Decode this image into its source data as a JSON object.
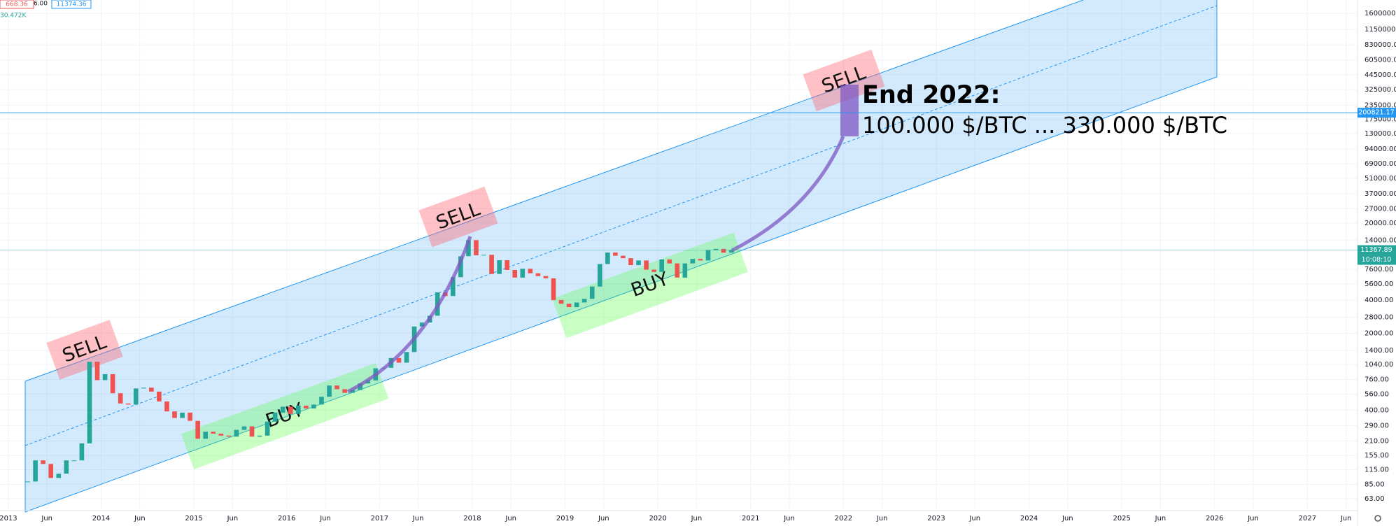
{
  "chart_data": {
    "type": "candlestick",
    "legend_values": [
      "668.36",
      "6.00",
      "11374.36"
    ],
    "volume_label": "30.472K",
    "x": [
      "2013-03",
      "2013-04",
      "2013-05",
      "2013-06",
      "2013-07",
      "2013-08",
      "2013-09",
      "2013-10",
      "2013-11",
      "2013-12",
      "2014-01",
      "2014-02",
      "2014-03",
      "2014-04",
      "2014-05",
      "2014-06",
      "2014-07",
      "2014-08",
      "2014-09",
      "2014-10",
      "2014-11",
      "2014-12",
      "2015-01",
      "2015-02",
      "2015-03",
      "2015-04",
      "2015-05",
      "2015-06",
      "2015-07",
      "2015-08",
      "2015-09",
      "2015-10",
      "2015-11",
      "2015-12",
      "2016-01",
      "2016-02",
      "2016-03",
      "2016-04",
      "2016-05",
      "2016-06",
      "2016-07",
      "2016-08",
      "2016-09",
      "2016-10",
      "2016-11",
      "2016-12",
      "2017-01",
      "2017-02",
      "2017-03",
      "2017-04",
      "2017-05",
      "2017-06",
      "2017-07",
      "2017-08",
      "2017-09",
      "2017-10",
      "2017-11",
      "2017-12",
      "2018-01",
      "2018-02",
      "2018-03",
      "2018-04",
      "2018-05",
      "2018-06",
      "2018-07",
      "2018-08",
      "2018-09",
      "2018-10",
      "2018-11",
      "2018-12",
      "2019-01",
      "2019-02",
      "2019-03",
      "2019-04",
      "2019-05",
      "2019-06",
      "2019-07",
      "2019-08",
      "2019-09",
      "2019-10",
      "2019-11",
      "2019-12",
      "2020-01",
      "2020-02",
      "2020-03",
      "2020-04",
      "2020-05",
      "2020-06",
      "2020-07",
      "2020-08",
      "2020-09",
      "2020-10"
    ],
    "values": [
      90,
      140,
      130,
      97,
      106,
      140,
      140,
      200,
      1100,
      750,
      850,
      570,
      460,
      450,
      630,
      640,
      590,
      480,
      390,
      340,
      380,
      320,
      220,
      255,
      245,
      235,
      230,
      265,
      285,
      230,
      235,
      315,
      380,
      430,
      370,
      440,
      415,
      450,
      530,
      670,
      620,
      575,
      610,
      700,
      745,
      960,
      970,
      1190,
      1080,
      1350,
      2300,
      2500,
      2880,
      4700,
      4350,
      6450,
      10000,
      14000,
      10200,
      10300,
      6900,
      9200,
      7500,
      6400,
      7700,
      7000,
      6600,
      6300,
      4000,
      3700,
      3450,
      3800,
      4100,
      5300,
      8500,
      10800,
      10100,
      9600,
      8300,
      9150,
      7550,
      7200,
      9350,
      8600,
      6400,
      8600,
      9450,
      9140,
      11350,
      11650,
      10780,
      11370
    ],
    "up_color": "#26a69a",
    "down_color": "#ef5350",
    "log_y": true,
    "grid": true,
    "xlim": [
      2012.91,
      2027.54
    ],
    "ylim": [
      49,
      2120000
    ],
    "xticks": [
      2013,
      {
        "value": 2013.4167,
        "label": "Jun"
      },
      2014,
      {
        "value": 2014.4167,
        "label": "Jun"
      },
      2015,
      {
        "value": 2015.4167,
        "label": "Jun"
      },
      2016,
      {
        "value": 2016.4167,
        "label": "Jun"
      },
      2017,
      {
        "value": 2017.4167,
        "label": "Jun"
      },
      2018,
      {
        "value": 2018.4167,
        "label": "Jun"
      },
      2019,
      {
        "value": 2019.4167,
        "label": "Jun"
      },
      2020,
      {
        "value": 2020.4167,
        "label": "Jun"
      },
      2021,
      {
        "value": 2021.4167,
        "label": "Jun"
      },
      2022,
      {
        "value": 2022.4167,
        "label": "Jun"
      },
      2023,
      {
        "value": 2023.4167,
        "label": "Jun"
      },
      2024,
      {
        "value": 2024.4167,
        "label": "Jun"
      },
      2025,
      {
        "value": 2025.4167,
        "label": "Jun"
      },
      2026,
      {
        "value": 2026.4167,
        "label": "Jun"
      },
      2027,
      {
        "value": 2027.4167,
        "label": "Jun"
      }
    ],
    "yticks": [
      {
        "value": 1600000,
        "label": "1600000.00"
      },
      {
        "value": 1150000,
        "label": "1150000.00"
      },
      {
        "value": 830000,
        "label": "830000.00"
      },
      {
        "value": 605000,
        "label": "605000.00"
      },
      {
        "value": 445000,
        "label": "445000.00"
      },
      {
        "value": 325000,
        "label": "325000.00"
      },
      {
        "value": 235000,
        "label": "235000.00"
      },
      {
        "value": 175000,
        "label": "175000.00"
      },
      {
        "value": 130000,
        "label": "130000.00"
      },
      {
        "value": 94000,
        "label": "94000.00"
      },
      {
        "value": 69000,
        "label": "69000.00"
      },
      {
        "value": 51000,
        "label": "51000.00"
      },
      {
        "value": 37000,
        "label": "37000.00"
      },
      {
        "value": 27000,
        "label": "27000.00"
      },
      {
        "value": 20000,
        "label": "20000.00"
      },
      {
        "value": 14000,
        "label": "14000.00"
      },
      {
        "value": 7600,
        "label": "7600.00"
      },
      {
        "value": 5600,
        "label": "5600.00"
      },
      {
        "value": 4000,
        "label": "4000.00"
      },
      {
        "value": 2800,
        "label": "2800.00"
      },
      {
        "value": 2000,
        "label": "2000.00"
      },
      {
        "value": 1400,
        "label": "1400.00"
      },
      {
        "value": 1040,
        "label": "1040.00"
      },
      {
        "value": 760,
        "label": "760.00"
      },
      {
        "value": 560,
        "label": "560.00"
      },
      {
        "value": 400,
        "label": "400.00"
      },
      {
        "value": 290,
        "label": "290.00"
      },
      {
        "value": 210,
        "label": "210.00"
      },
      {
        "value": 155,
        "label": "155.00"
      },
      {
        "value": 115,
        "label": "115.00"
      },
      {
        "value": 85,
        "label": "85.00"
      },
      {
        "value": 63,
        "label": "63.00"
      }
    ],
    "price_lines": [
      {
        "value": 200821.17,
        "label": "200821.17",
        "color": "#2196f3"
      },
      {
        "value": 11367.89,
        "label": "11367.89",
        "color": "#26a69a"
      }
    ],
    "countdown": "10:08:10",
    "annotations": {
      "sell": [
        "SELL",
        "SELL",
        "SELL"
      ],
      "buy": [
        "BUY",
        "BUY"
      ],
      "target_title": "End 2022:",
      "target_range": "100.000 $/BTC ... 330.000 $/BTC"
    }
  }
}
